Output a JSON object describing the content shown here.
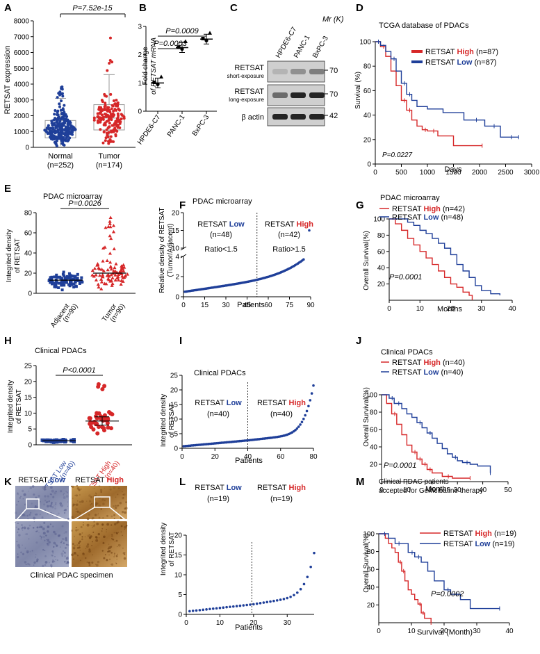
{
  "colors": {
    "red": "#d62728",
    "blue": "#1f3f99",
    "black": "#000000",
    "wb_bg": "#cfcfcf",
    "wb_band": "#1a1a1a",
    "ihc_low": "#8a8fb0",
    "ihc_high": "#b8782e"
  },
  "panels": {
    "A": {
      "letter": "A",
      "pvalue": "P=7.52e-15",
      "ylabel": "RETSAT expression",
      "groups": [
        {
          "label": "Normal",
          "n": "(n=252)"
        },
        {
          "label": "Tumor",
          "n": "(n=174)"
        }
      ],
      "chart_data": {
        "type": "scatter",
        "ylim": [
          0,
          8000
        ],
        "yticks": [
          "0",
          "1000",
          "2000",
          "3000",
          "4000",
          "5000",
          "6000",
          "7000",
          "8000"
        ],
        "series": [
          {
            "name": "Normal",
            "n": 252,
            "median": 1100,
            "q1": 600,
            "q3": 1700,
            "whisker_low": 100,
            "whisker_high": 3100
          },
          {
            "name": "Tumor",
            "n": 174,
            "median": 1850,
            "q1": 1100,
            "q3": 2700,
            "whisker_low": 200,
            "whisker_high": 4600
          }
        ]
      }
    },
    "B": {
      "letter": "B",
      "ylabel1": "Fold change",
      "ylabel2": "of RETSAT mRNA",
      "p1": "P=0.0003",
      "p2": "P=0.0009",
      "chart_data": {
        "type": "scatter",
        "categories": [
          "HPDE6-C7",
          "PANC-1",
          "BxPC-3"
        ],
        "values": [
          1.0,
          2.25,
          2.55
        ],
        "ylim": [
          0,
          3
        ],
        "yticks": [
          "0",
          "1",
          "2",
          "3"
        ]
      }
    },
    "C": {
      "letter": "C",
      "mr": "Mr (K)",
      "lanes": [
        "HPDE6-C7",
        "PANC-1",
        "BxPC-3"
      ],
      "rows": [
        {
          "label": "RETSAT",
          "sub": "short-exposure",
          "kd": "70",
          "intensity": [
            0.15,
            0.35,
            0.45
          ]
        },
        {
          "label": "RETSAT",
          "sub": "long-exposure",
          "kd": "70",
          "intensity": [
            0.55,
            0.95,
            0.95
          ]
        },
        {
          "label": "β actin",
          "sub": "",
          "kd": "42",
          "intensity": [
            0.95,
            0.95,
            0.95
          ]
        }
      ]
    },
    "D": {
      "letter": "D",
      "title": "TCGA database of PDACs",
      "ylabel": "Survival (%)",
      "xlabel": "Days",
      "pvalue": "P=0.0227",
      "legend": [
        {
          "name": "RETSAT",
          "level": "High",
          "n": "(n=87)"
        },
        {
          "name": "RETSAT",
          "level": "Low",
          "n": "(n=87)"
        }
      ],
      "chart_data": {
        "type": "line",
        "xlim": [
          0,
          3000
        ],
        "ylim": [
          0,
          100
        ],
        "xticks": [
          "0",
          "500",
          "1000",
          "1500",
          "2000",
          "2500",
          "3000"
        ],
        "yticks": [
          "0",
          "20",
          "40",
          "60",
          "80",
          "100"
        ],
        "series": [
          {
            "name": "RETSAT High",
            "x": [
              0,
              100,
              200,
              300,
              400,
              500,
              600,
              700,
              800,
              900,
              1000,
              1200,
              1500,
              2050
            ],
            "y": [
              100,
              96,
              88,
              76,
              64,
              52,
              44,
              36,
              31,
              28,
              27,
              23,
              15,
              15
            ]
          },
          {
            "name": "RETSAT Low",
            "x": [
              0,
              100,
              200,
              300,
              400,
              500,
              600,
              700,
              800,
              1000,
              1300,
              1700,
              2100,
              2400,
              2750
            ],
            "y": [
              100,
              97,
              92,
              86,
              76,
              66,
              57,
              52,
              47,
              45,
              42,
              36,
              31,
              22,
              22
            ]
          }
        ]
      }
    },
    "E": {
      "letter": "E",
      "title": "PDAC microarray",
      "pvalue": "P=0.0026",
      "ylabel1": "Integrited density",
      "ylabel2": "of RETSAT",
      "groups": [
        {
          "label": "Adjacent",
          "n": "(n=90)"
        },
        {
          "label": "Tumor",
          "n": "(n=90)"
        }
      ],
      "chart_data": {
        "type": "scatter",
        "ylim": [
          0,
          80
        ],
        "yticks": [
          "0",
          "20",
          "40",
          "60",
          "80"
        ],
        "series": [
          {
            "name": "Adjacent",
            "n": 90,
            "mean": 13,
            "range": [
              1,
              31
            ]
          },
          {
            "name": "Tumor",
            "n": 90,
            "mean": 20,
            "range": [
              1,
              77
            ]
          }
        ]
      }
    },
    "F": {
      "letter": "F",
      "title": "PDAC microarray",
      "ylabel1": "Relative density of RETSAT",
      "ylabel2": "(Tumor/Adjacent)",
      "xlabel": "Patients",
      "low": {
        "name": "RETSAT",
        "level": "Low",
        "n": "(n=48)",
        "ratio": "Ratio<1.5"
      },
      "high": {
        "name": "RETSAT",
        "level": "High",
        "n": "(n=42)",
        "ratio": "Ratio>1.5"
      },
      "chart_data": {
        "type": "scatter",
        "x_range": [
          1,
          85
        ],
        "y_start": 0.5,
        "y_end": 3.7,
        "cutoff": 52,
        "outlier": 15,
        "xticks": [
          "0",
          "15",
          "30",
          "45",
          "60",
          "75",
          "90"
        ],
        "yticks_low": [
          "0",
          "2",
          "4"
        ],
        "yticks_high": [
          "10",
          "15",
          "20"
        ]
      }
    },
    "G": {
      "letter": "G",
      "title": "PDAC microarray",
      "ylabel": "Overall Survival(%)",
      "xlabel": "Months",
      "pvalue": "P=0.0001",
      "legend": [
        {
          "name": "RETSAT",
          "level": "High",
          "n": "(n=42)"
        },
        {
          "name": "RETSAT",
          "level": "Low",
          "n": "(n=48)"
        }
      ],
      "chart_data": {
        "type": "line",
        "xlim": [
          0,
          40
        ],
        "ylim": [
          0,
          100
        ],
        "xticks": [
          "0",
          "10",
          "20",
          "30",
          "40"
        ],
        "yticks": [
          "20",
          "40",
          "60",
          "80",
          "100"
        ],
        "series": [
          {
            "name": "RETSAT High",
            "x": [
              0,
              2,
              4,
              6,
              8,
              10,
              12,
              14,
              16,
              18,
              20,
              22,
              24,
              26,
              27
            ],
            "y": [
              100,
              94,
              86,
              76,
              68,
              60,
              52,
              44,
              36,
              28,
              20,
              16,
              10,
              6,
              0
            ]
          },
          {
            "name": "RETSAT Low",
            "x": [
              0,
              4,
              6,
              8,
              10,
              12,
              14,
              16,
              18,
              20,
              22,
              24,
              26,
              28,
              30,
              33,
              36
            ],
            "y": [
              100,
              100,
              96,
              92,
              86,
              82,
              76,
              70,
              64,
              56,
              44,
              36,
              28,
              18,
              12,
              8,
              6
            ]
          }
        ]
      }
    },
    "H": {
      "letter": "H",
      "title": "Clinical PDACs",
      "pvalue": "P<0.0001",
      "ylabel1": "Integrited density",
      "ylabel2": "of RETSAT",
      "groups": [
        {
          "label": "RETSAT Low",
          "n": "(n=40)"
        },
        {
          "label": "RETSAT High",
          "n": "(n=40)"
        }
      ],
      "chart_data": {
        "type": "scatter",
        "ylim": [
          0,
          25
        ],
        "yticks": [
          "0",
          "5",
          "10",
          "15",
          "20",
          "25"
        ],
        "series": [
          {
            "name": "RETSAT Low",
            "n": 40,
            "mean": 1.3,
            "range": [
              0.5,
              2.5
            ]
          },
          {
            "name": "RETSAT High",
            "n": 40,
            "mean": 7.5,
            "range": [
              2.5,
              21.5
            ]
          }
        ]
      }
    },
    "I": {
      "letter": "I",
      "title": "Clinical PDACs",
      "ylabel1": "Integrited density",
      "ylabel2": "of RETSAT",
      "xlabel": "Patients",
      "low": {
        "name": "RETSAT",
        "level": "Low",
        "n": "(n=40)"
      },
      "high": {
        "name": "RETSAT",
        "level": "High",
        "n": "(n=40)"
      },
      "chart_data": {
        "type": "scatter",
        "n": 80,
        "cutoff": 40,
        "xlim": [
          0,
          80
        ],
        "ylim": [
          0,
          25
        ],
        "xticks": [
          "0",
          "20",
          "40",
          "60",
          "80"
        ],
        "yticks": [
          "0",
          "5",
          "10",
          "15",
          "20",
          "25"
        ],
        "y_start": 0.7,
        "y_cut": 2.7,
        "y_end": 21.5
      }
    },
    "J": {
      "letter": "J",
      "title": "Clinical PDACs",
      "ylabel": "Overall Survival(%)",
      "xlabel": "Months",
      "pvalue": "P=0.0001",
      "legend": [
        {
          "name": "RETSAT",
          "level": "High",
          "n": "(n=40)"
        },
        {
          "name": "RETSAT",
          "level": "Low",
          "n": "(n=40)"
        }
      ],
      "chart_data": {
        "type": "line",
        "xlim": [
          0,
          50
        ],
        "ylim": [
          0,
          100
        ],
        "xticks": [
          "0",
          "10",
          "20",
          "30",
          "40",
          "50"
        ],
        "yticks": [
          "20",
          "40",
          "60",
          "80",
          "100"
        ],
        "series": [
          {
            "name": "RETSAT High",
            "x": [
              0,
              2,
              4,
              6,
              8,
              10,
              12,
              14,
              16,
              18,
              20,
              24,
              28,
              32,
              35
            ],
            "y": [
              100,
              90,
              78,
              66,
              54,
              42,
              34,
              26,
              20,
              14,
              10,
              6,
              4,
              4,
              4
            ]
          },
          {
            "name": "RETSAT Low",
            "x": [
              0,
              3,
              5,
              8,
              10,
              12,
              14,
              16,
              18,
              20,
              22,
              24,
              26,
              28,
              30,
              32,
              35,
              38,
              43
            ],
            "y": [
              100,
              96,
              90,
              84,
              78,
              74,
              68,
              62,
              56,
              50,
              44,
              38,
              32,
              28,
              24,
              22,
              20,
              18,
              10
            ]
          }
        ]
      }
    },
    "K": {
      "letter": "K",
      "caption": "Clinical PDAC specimen",
      "labels": [
        {
          "name": "RETSAT",
          "level": "Low"
        },
        {
          "name": "RETSAT",
          "level": "High"
        }
      ]
    },
    "L": {
      "letter": "L",
      "ylabel1": "Integrited density",
      "ylabel2": "of RETSAT",
      "xlabel": "Patients",
      "low": {
        "name": "RETSAT",
        "level": "Low",
        "n": "(n=19)"
      },
      "high": {
        "name": "RETSAT",
        "level": "High",
        "n": "(n=19)"
      },
      "chart_data": {
        "type": "scatter",
        "n": 38,
        "cutoff": 19.5,
        "xlim": [
          0,
          38
        ],
        "ylim": [
          0,
          20
        ],
        "xticks": [
          "0",
          "10",
          "20",
          "30"
        ],
        "yticks": [
          "0",
          "5",
          "10",
          "15",
          "20"
        ],
        "y_start": 0.8,
        "y_cut": 2.5,
        "y_end": 15.5
      }
    },
    "M": {
      "letter": "M",
      "title1": "Clinical PDAC patients",
      "title2": "accepted for Gemcibatine therapy",
      "ylabel": "Overall Survival(%)",
      "xlabel": "Survival (Month)",
      "pvalue": "P=0.0002",
      "legend": [
        {
          "name": "RETSAT",
          "level": "High",
          "n": "(n=19)"
        },
        {
          "name": "RETSAT",
          "level": "Low",
          "n": "(n=19)"
        }
      ],
      "chart_data": {
        "type": "line",
        "xlim": [
          0,
          40
        ],
        "ylim": [
          0,
          100
        ],
        "xticks": [
          "0",
          "10",
          "20",
          "30",
          "40"
        ],
        "yticks": [
          "20",
          "40",
          "60",
          "80",
          "100"
        ],
        "series": [
          {
            "name": "RETSAT High",
            "x": [
              0,
              2,
              3,
              4,
              5,
              6,
              7,
              8,
              9,
              10,
              11,
              12,
              13,
              14,
              16
            ],
            "y": [
              100,
              95,
              89,
              84,
              79,
              68,
              58,
              47,
              37,
              32,
              26,
              21,
              11,
              5,
              0
            ]
          },
          {
            "name": "RETSAT Low",
            "x": [
              0,
              3,
              5,
              7,
              9,
              11,
              13,
              15,
              17,
              20,
              22,
              25,
              28,
              37
            ],
            "y": [
              100,
              95,
              89,
              89,
              79,
              74,
              68,
              58,
              47,
              37,
              32,
              26,
              16,
              16
            ]
          }
        ]
      }
    }
  }
}
